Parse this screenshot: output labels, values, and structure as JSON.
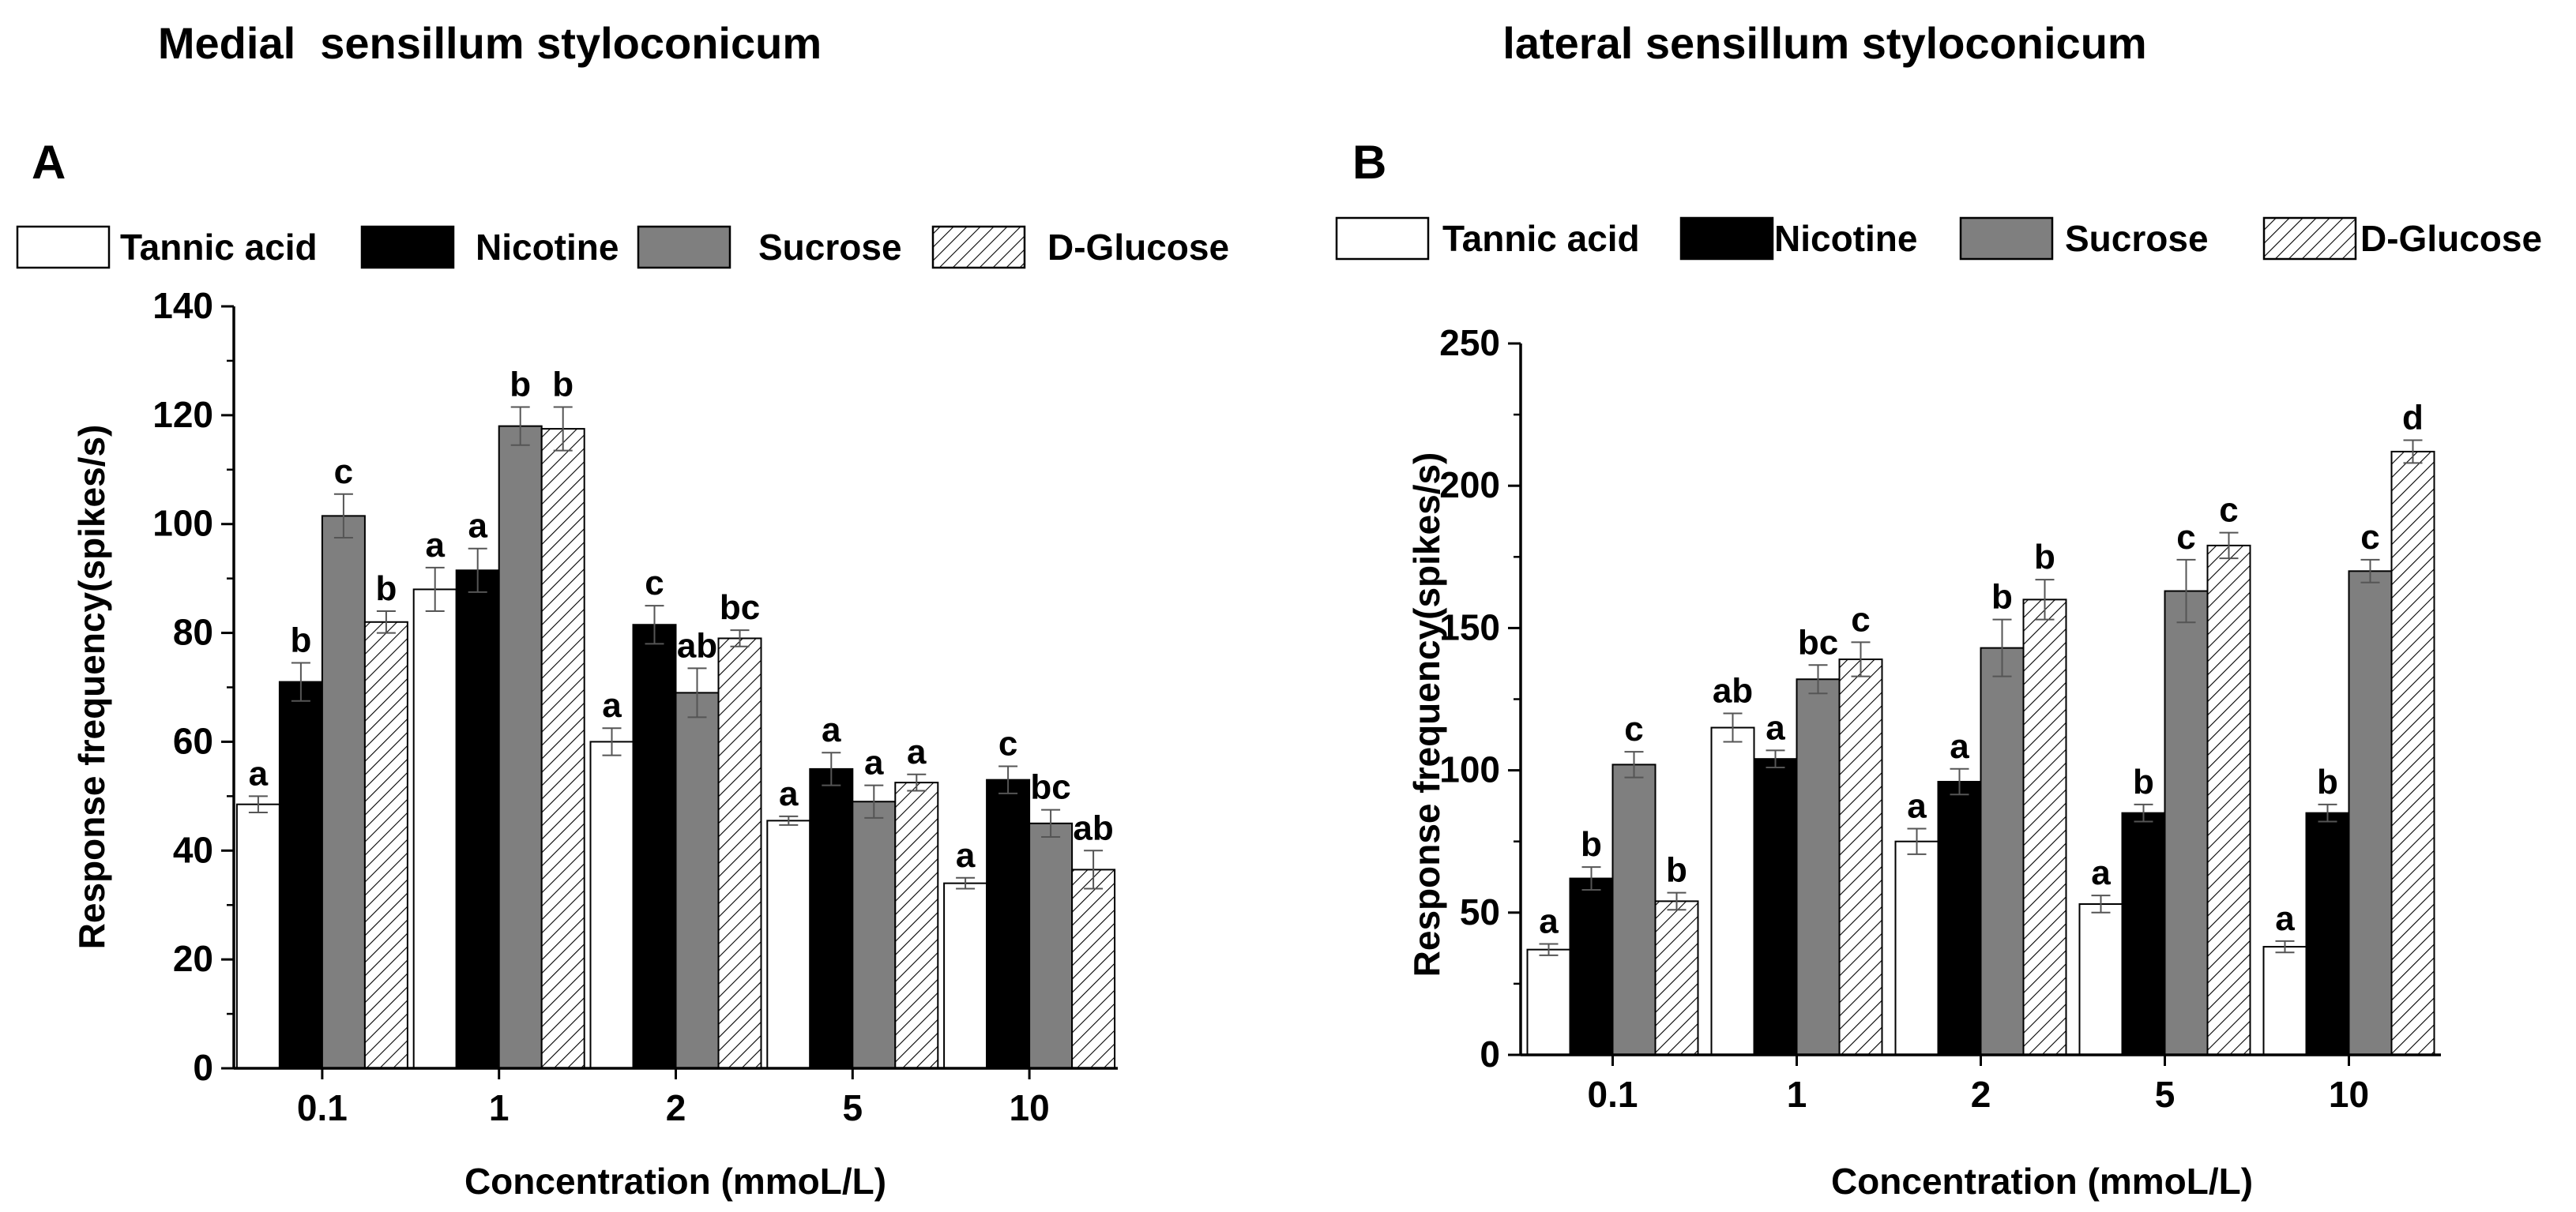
{
  "chart_data": [
    {
      "type": "bar",
      "title": "Medial  sensillum styloconicum",
      "panel_label": "A",
      "xlabel": "Concentration (mmoL/L)",
      "ylabel": "Response frequency(spikes/s)",
      "categories": [
        "0.1",
        "1",
        "2",
        "5",
        "10"
      ],
      "ylim": [
        0,
        140
      ],
      "yticks": [
        0,
        20,
        40,
        60,
        80,
        100,
        120,
        140
      ],
      "legend_position": "top",
      "grid": false,
      "series": [
        {
          "name": "Tannic acid",
          "values": [
            48.5,
            88,
            60,
            45.5,
            34
          ],
          "errors": [
            1.5,
            4,
            2.5,
            0.8,
            1
          ],
          "letters": [
            "a",
            "a",
            "a",
            "a",
            "a"
          ]
        },
        {
          "name": "Nicotine",
          "values": [
            71,
            91.5,
            81.5,
            55,
            53
          ],
          "errors": [
            3.5,
            4,
            3.5,
            3,
            2.5
          ],
          "letters": [
            "b",
            "a",
            "c",
            "a",
            "c"
          ]
        },
        {
          "name": "Sucrose",
          "values": [
            101.5,
            118,
            69,
            49,
            45
          ],
          "errors": [
            4,
            3.5,
            4.5,
            3,
            2.5
          ],
          "letters": [
            "c",
            "b",
            "ab",
            "a",
            "bc"
          ]
        },
        {
          "name": "D-Glucose",
          "values": [
            82,
            117.5,
            79,
            52.5,
            36.5
          ],
          "errors": [
            2,
            4,
            1.5,
            1.5,
            3.5
          ],
          "letters": [
            "b",
            "b",
            "bc",
            "a",
            "ab"
          ]
        }
      ]
    },
    {
      "type": "bar",
      "title": "lateral sensillum styloconicum",
      "panel_label": "B",
      "xlabel": "Concentration (mmoL/L)",
      "ylabel": "Response frequency(spikes/s)",
      "categories": [
        "0.1",
        "1",
        "2",
        "5",
        "10"
      ],
      "ylim": [
        0,
        250
      ],
      "yticks": [
        0,
        50,
        100,
        150,
        200,
        250
      ],
      "legend_position": "top",
      "grid": false,
      "series": [
        {
          "name": "Tannic acid",
          "values": [
            37,
            115,
            75,
            53,
            38
          ],
          "errors": [
            2,
            5,
            4.5,
            3,
            2
          ],
          "letters": [
            "a",
            "ab",
            "a",
            "a",
            "a"
          ]
        },
        {
          "name": "Nicotine",
          "values": [
            62,
            104,
            96,
            85,
            85
          ],
          "errors": [
            4,
            3,
            4.5,
            3,
            3
          ],
          "letters": [
            "b",
            "a",
            "a",
            "b",
            "b"
          ]
        },
        {
          "name": "Sucrose",
          "values": [
            102,
            132,
            143,
            163,
            170
          ],
          "errors": [
            4.5,
            5,
            10,
            11,
            4
          ],
          "letters": [
            "c",
            "bc",
            "b",
            "c",
            "c"
          ]
        },
        {
          "name": "D-Glucose",
          "values": [
            54,
            139,
            160,
            179,
            212
          ],
          "errors": [
            3,
            6,
            7,
            4.5,
            4
          ],
          "letters": [
            "b",
            "c",
            "b",
            "c",
            "d"
          ]
        }
      ]
    }
  ]
}
